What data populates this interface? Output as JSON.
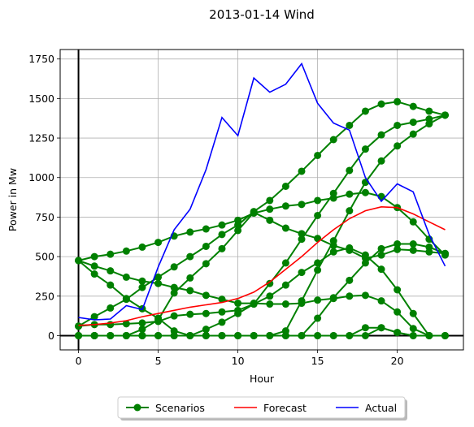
{
  "chart_data": {
    "type": "line",
    "title": "2013-01-14 Wind",
    "xlabel": "Hour",
    "ylabel": "Power in Mw",
    "xlim": [
      -1.15,
      24.15
    ],
    "ylim": [
      -90,
      1810
    ],
    "xticks": [
      0,
      5,
      10,
      15,
      20
    ],
    "yticks": [
      0,
      250,
      500,
      750,
      1000,
      1250,
      1500,
      1750
    ],
    "grid": true,
    "legend_position": "bottom-center, below plot",
    "legend": [
      "Scenarios",
      "Forecast",
      "Actual"
    ],
    "colors": {
      "scenarios": "#008000",
      "forecast": "#ff0000",
      "actual": "#0000ff",
      "reference_lines": "#000000",
      "grid": "#b0b0b0"
    },
    "x": [
      0,
      1,
      2,
      3,
      4,
      5,
      6,
      7,
      8,
      9,
      10,
      11,
      12,
      13,
      14,
      15,
      16,
      17,
      18,
      19,
      20,
      21,
      22,
      23
    ],
    "forecast": [
      65,
      70,
      80,
      95,
      120,
      140,
      160,
      180,
      195,
      210,
      235,
      275,
      340,
      420,
      500,
      590,
      670,
      740,
      790,
      815,
      810,
      770,
      720,
      670
    ],
    "actual": [
      115,
      100,
      105,
      190,
      165,
      435,
      670,
      800,
      1050,
      1380,
      1265,
      1630,
      1540,
      1590,
      1720,
      1470,
      1345,
      1300,
      1000,
      850,
      960,
      910,
      640,
      440
    ],
    "scenarios": [
      [
        475,
        500,
        515,
        535,
        560,
        590,
        630,
        655,
        675,
        700,
        730,
        775,
        800,
        820,
        830,
        855,
        870,
        895,
        905,
        880,
        810,
        720,
        610,
        510
      ],
      [
        475,
        440,
        410,
        370,
        345,
        330,
        305,
        285,
        255,
        230,
        205,
        205,
        200,
        200,
        205,
        225,
        235,
        250,
        255,
        220,
        150,
        45,
        0,
        0
      ],
      [
        475,
        390,
        320,
        235,
        170,
        110,
        30,
        0,
        0,
        0,
        0,
        0,
        0,
        0,
        0,
        0,
        0,
        0,
        0,
        50,
        20,
        0,
        0,
        0
      ],
      [
        60,
        70,
        70,
        75,
        80,
        90,
        125,
        135,
        140,
        150,
        160,
        200,
        250,
        320,
        400,
        460,
        530,
        555,
        510,
        420,
        290,
        140,
        0,
        0
      ],
      [
        60,
        120,
        175,
        230,
        305,
        370,
        435,
        500,
        565,
        640,
        700,
        785,
        855,
        945,
        1040,
        1140,
        1240,
        1330,
        1420,
        1465,
        1480,
        1450,
        1420,
        1395
      ],
      [
        0,
        0,
        0,
        0,
        0,
        0,
        0,
        0,
        0,
        0,
        0,
        0,
        0,
        0,
        0,
        110,
        240,
        350,
        460,
        550,
        580,
        580,
        560,
        520
      ],
      [
        0,
        0,
        0,
        0,
        40,
        100,
        270,
        365,
        455,
        550,
        665,
        780,
        730,
        680,
        645,
        615,
        570,
        540,
        490,
        510,
        545,
        540,
        530,
        520
      ],
      [
        0,
        0,
        0,
        0,
        0,
        0,
        0,
        0,
        40,
        85,
        140,
        200,
        330,
        460,
        610,
        760,
        900,
        1045,
        1180,
        1270,
        1330,
        1350,
        1370,
        1395
      ],
      [
        0,
        0,
        0,
        0,
        0,
        0,
        0,
        0,
        0,
        0,
        0,
        0,
        0,
        30,
        220,
        415,
        600,
        790,
        970,
        1105,
        1200,
        1275,
        1340,
        1395
      ],
      [
        0,
        0,
        0,
        0,
        0,
        0,
        0,
        0,
        0,
        0,
        0,
        0,
        0,
        0,
        0,
        0,
        0,
        0,
        50,
        50,
        20,
        0,
        0,
        0
      ]
    ]
  }
}
